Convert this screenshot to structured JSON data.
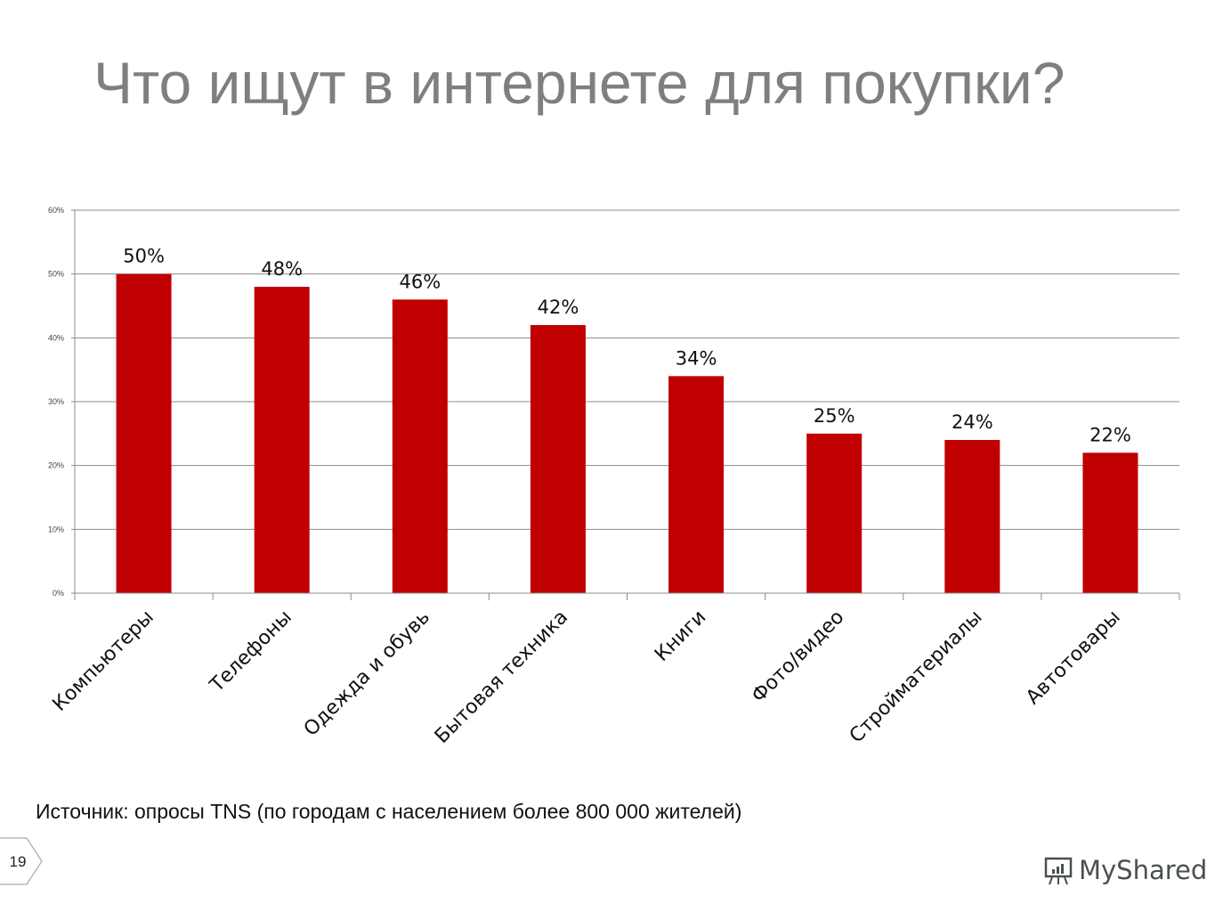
{
  "slide": {
    "title": "Что ищут в интернете для покупки?",
    "source": "Источник: опросы TNS (по городам с населением более 800 000 жителей)",
    "page_number": "19",
    "logo_text": "MyShared"
  },
  "chart_data": {
    "type": "bar",
    "title": "",
    "xlabel": "",
    "ylabel": "",
    "categories": [
      "Компьютеры",
      "Телефоны",
      "Одежда и обувь",
      "Бытовая техника",
      "Книги",
      "Фото/видео",
      "Стройматериалы",
      "Автотовары"
    ],
    "values": [
      50,
      48,
      46,
      42,
      34,
      25,
      24,
      22
    ],
    "data_labels": [
      "50%",
      "48%",
      "46%",
      "42%",
      "34%",
      "25%",
      "24%",
      "22%"
    ],
    "ylim": [
      0,
      60
    ],
    "yticks": [
      0,
      10,
      20,
      30,
      40,
      50,
      60
    ],
    "ytick_labels": [
      "0%",
      "10%",
      "20%",
      "30%",
      "40%",
      "50%",
      "60%"
    ],
    "grid": true,
    "legend": "none",
    "bar_color": "#c00000"
  }
}
